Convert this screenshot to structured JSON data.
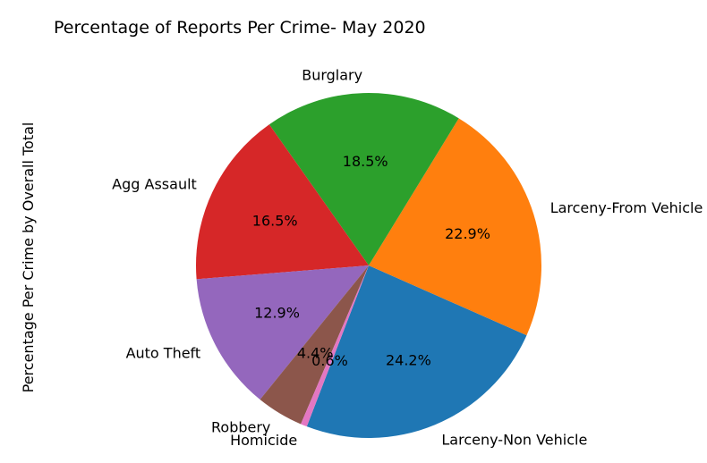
{
  "chart_data": {
    "type": "pie",
    "title": "Percentage of Reports Per Crime- May 2020",
    "ylabel": "Percentage Per Crime by Overall Total",
    "start_angle_deg": -111,
    "direction": "counterclockwise",
    "label_format": "{pct}%",
    "slices": [
      {
        "label": "Larceny-Non Vehicle",
        "value": 24.2,
        "color": "#1f77b4"
      },
      {
        "label": "Larceny-From Vehicle",
        "value": 22.9,
        "color": "#ff7f0e"
      },
      {
        "label": "Burglary",
        "value": 18.5,
        "color": "#2ca02c"
      },
      {
        "label": "Agg Assault",
        "value": 16.5,
        "color": "#d62728"
      },
      {
        "label": "Auto Theft",
        "value": 12.9,
        "color": "#9467bd"
      },
      {
        "label": "Robbery",
        "value": 4.4,
        "color": "#8c564b"
      },
      {
        "label": "Homicide",
        "value": 0.6,
        "color": "#e377c2"
      }
    ]
  }
}
